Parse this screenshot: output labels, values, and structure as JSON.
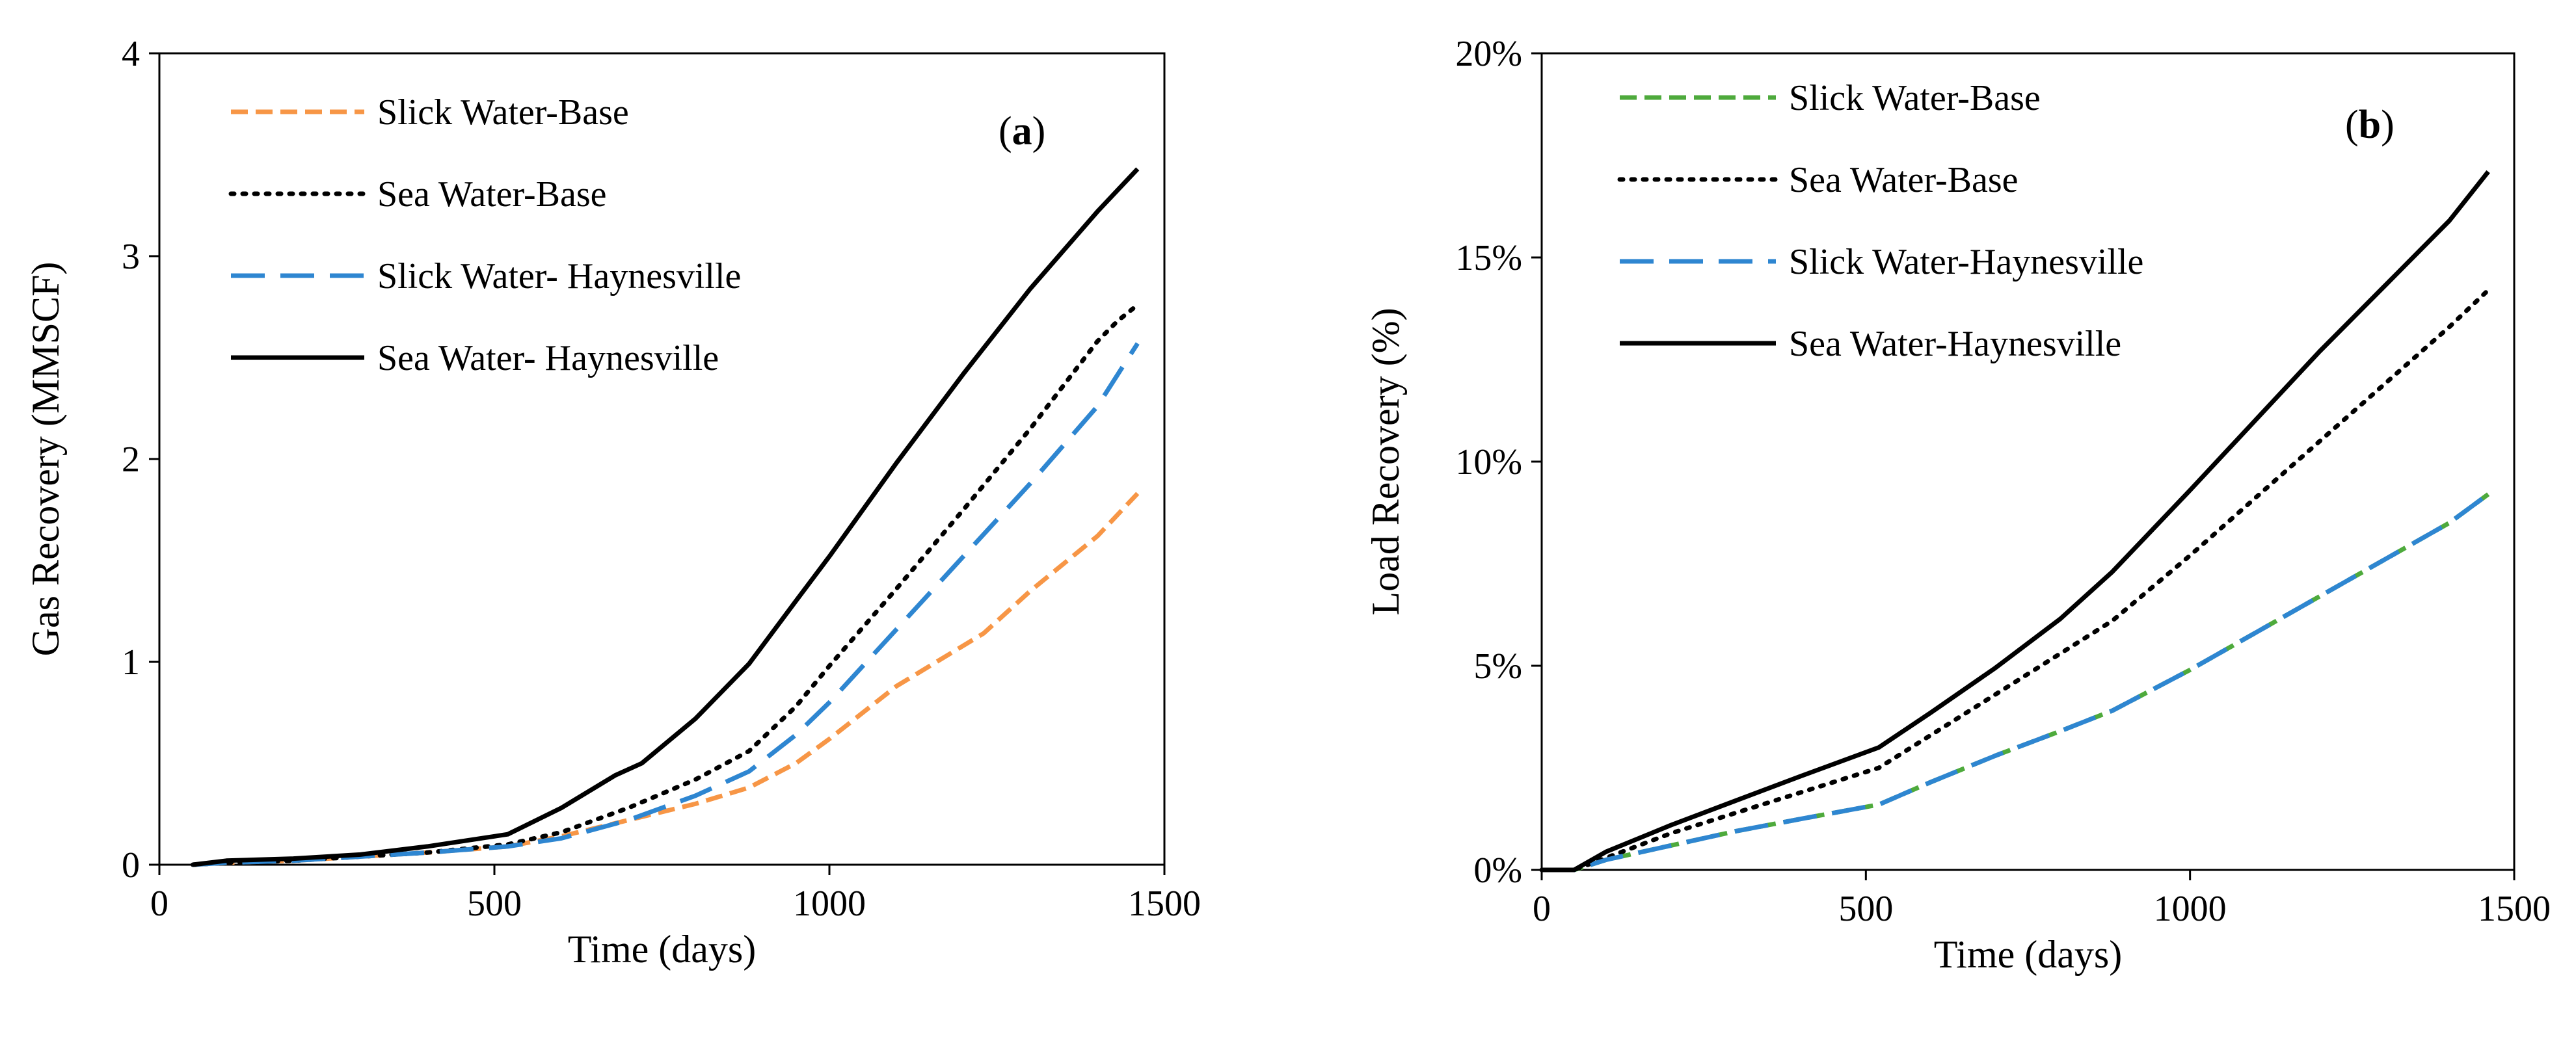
{
  "chart_data": [
    {
      "type": "line",
      "panel_label": "(a)",
      "panel_label_parts": [
        "(",
        "a",
        ")"
      ],
      "xlabel": "Time (days)",
      "ylabel": "Gas Recovery (MMSCF)",
      "xlim": [
        0,
        1500
      ],
      "ylim": [
        0,
        4
      ],
      "xticks": [
        0,
        500,
        1000,
        1500
      ],
      "yticks": [
        0,
        1,
        2,
        3,
        4
      ],
      "ytick_labels": [
        "0",
        "1",
        "2",
        "3",
        "4"
      ],
      "legend_position": "top-left",
      "series": [
        {
          "name": "Slick Water-Base",
          "color": "#F79646",
          "dash": "dash",
          "x": [
            50,
            100,
            200,
            300,
            400,
            520,
            600,
            700,
            800,
            880,
            950,
            1000,
            1100,
            1200,
            1230,
            1300,
            1400,
            1460
          ],
          "y": [
            0,
            0.01,
            0.02,
            0.04,
            0.06,
            0.09,
            0.14,
            0.22,
            0.3,
            0.38,
            0.5,
            0.62,
            0.88,
            1.08,
            1.14,
            1.35,
            1.62,
            1.83
          ]
        },
        {
          "name": "Sea Water-Base",
          "color": "#000000",
          "dash": "dot",
          "x": [
            50,
            100,
            200,
            300,
            400,
            520,
            600,
            700,
            800,
            880,
            950,
            1000,
            1100,
            1200,
            1300,
            1400,
            1430,
            1460
          ],
          "y": [
            0,
            0.01,
            0.02,
            0.04,
            0.06,
            0.1,
            0.16,
            0.28,
            0.42,
            0.56,
            0.78,
            0.98,
            1.36,
            1.75,
            2.15,
            2.58,
            2.68,
            2.76
          ]
        },
        {
          "name": "Slick Water- Haynesville",
          "color": "#2E86D1",
          "dash": "longdash",
          "x": [
            50,
            100,
            200,
            300,
            400,
            520,
            600,
            700,
            800,
            880,
            950,
            1000,
            1100,
            1200,
            1300,
            1400,
            1460
          ],
          "y": [
            0,
            0.01,
            0.02,
            0.04,
            0.06,
            0.09,
            0.13,
            0.22,
            0.34,
            0.46,
            0.64,
            0.8,
            1.16,
            1.52,
            1.88,
            2.26,
            2.57
          ]
        },
        {
          "name": "Sea Water- Haynesville",
          "color": "#000000",
          "dash": "solid",
          "x": [
            50,
            100,
            200,
            300,
            400,
            520,
            600,
            680,
            720,
            800,
            880,
            950,
            1000,
            1100,
            1200,
            1300,
            1400,
            1460
          ],
          "y": [
            0,
            0.02,
            0.03,
            0.05,
            0.09,
            0.15,
            0.28,
            0.44,
            0.5,
            0.72,
            0.99,
            1.3,
            1.52,
            1.98,
            2.42,
            2.84,
            3.22,
            3.43
          ]
        }
      ]
    },
    {
      "type": "line",
      "panel_label": "(b)",
      "panel_label_parts": [
        "(",
        "b",
        ")"
      ],
      "xlabel": "Time (days)",
      "ylabel": "Load Recovery (%)",
      "xlim": [
        0,
        1500
      ],
      "ylim": [
        0,
        20
      ],
      "xticks": [
        0,
        500,
        1000,
        1500
      ],
      "yticks": [
        0,
        5,
        10,
        15,
        20
      ],
      "ytick_labels": [
        "0%",
        "5%",
        "10%",
        "15%",
        "20%"
      ],
      "legend_position": "top-left",
      "series": [
        {
          "name": "Slick Water-Base",
          "color": "#4EAA3C",
          "dash": "dash",
          "x": [
            0,
            50,
            100,
            200,
            300,
            400,
            520,
            600,
            700,
            800,
            880,
            1000,
            1100,
            1200,
            1300,
            1400,
            1460
          ],
          "y": [
            0,
            0,
            0.25,
            0.6,
            0.95,
            1.25,
            1.6,
            2.15,
            2.8,
            3.4,
            3.9,
            4.9,
            5.8,
            6.7,
            7.6,
            8.5,
            9.2
          ]
        },
        {
          "name": "Sea Water-Base",
          "color": "#000000",
          "dash": "dot",
          "x": [
            0,
            50,
            100,
            200,
            300,
            400,
            520,
            600,
            700,
            800,
            880,
            1000,
            1100,
            1200,
            1300,
            1400,
            1460
          ],
          "y": [
            0,
            0,
            0.3,
            0.9,
            1.4,
            1.9,
            2.5,
            3.3,
            4.3,
            5.3,
            6.1,
            7.7,
            9.1,
            10.5,
            11.9,
            13.3,
            14.2
          ]
        },
        {
          "name": "Slick Water-Haynesville",
          "color": "#2E86D1",
          "dash": "longdash",
          "x": [
            0,
            50,
            100,
            200,
            300,
            400,
            520,
            600,
            700,
            800,
            880,
            1000,
            1100,
            1200,
            1300,
            1400,
            1460
          ],
          "y": [
            0,
            0,
            0.25,
            0.6,
            0.95,
            1.25,
            1.6,
            2.15,
            2.8,
            3.4,
            3.9,
            4.9,
            5.8,
            6.7,
            7.6,
            8.5,
            9.2
          ]
        },
        {
          "name": "Sea Water-Haynesville",
          "color": "#000000",
          "dash": "solid",
          "x": [
            0,
            50,
            100,
            200,
            300,
            400,
            520,
            600,
            700,
            800,
            880,
            1000,
            1100,
            1200,
            1300,
            1400,
            1460
          ],
          "y": [
            0,
            0,
            0.45,
            1.1,
            1.7,
            2.3,
            3.0,
            3.85,
            4.95,
            6.15,
            7.3,
            9.3,
            11.0,
            12.7,
            14.3,
            15.9,
            17.1
          ]
        }
      ]
    }
  ]
}
